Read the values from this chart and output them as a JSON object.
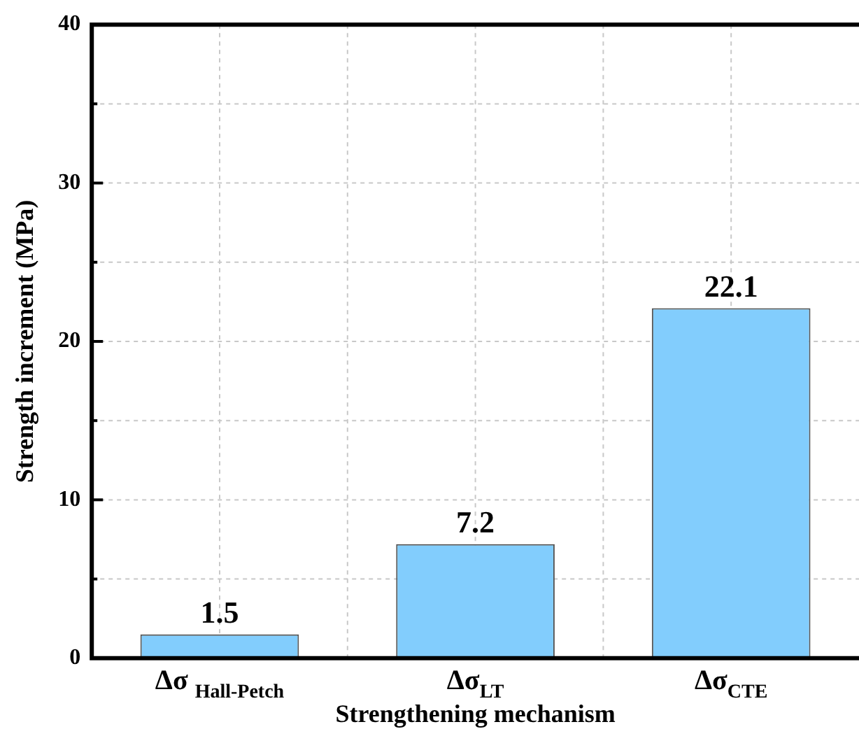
{
  "chart_data": {
    "type": "bar",
    "xlabel": "Strengthening mechanism",
    "ylabel": "Strength increment (MPa)",
    "categories": [
      "Δσ $_{Hall-Petch}$",
      "Δσ$_{LT}$",
      "Δσ$_{CTE}$"
    ],
    "values": [
      1.5,
      7.2,
      22.1
    ],
    "color": "#82cdfd",
    "ylim": [
      0,
      40
    ],
    "yticks": [
      0,
      {
        "value": 5,
        "label": null
      },
      10,
      {
        "value": 15,
        "label": null
      },
      20,
      {
        "value": 25,
        "label": null
      },
      30,
      {
        "value": 35,
        "label": null
      },
      40
    ],
    "grid": true,
    "data_labels": true,
    "legend": false
  }
}
